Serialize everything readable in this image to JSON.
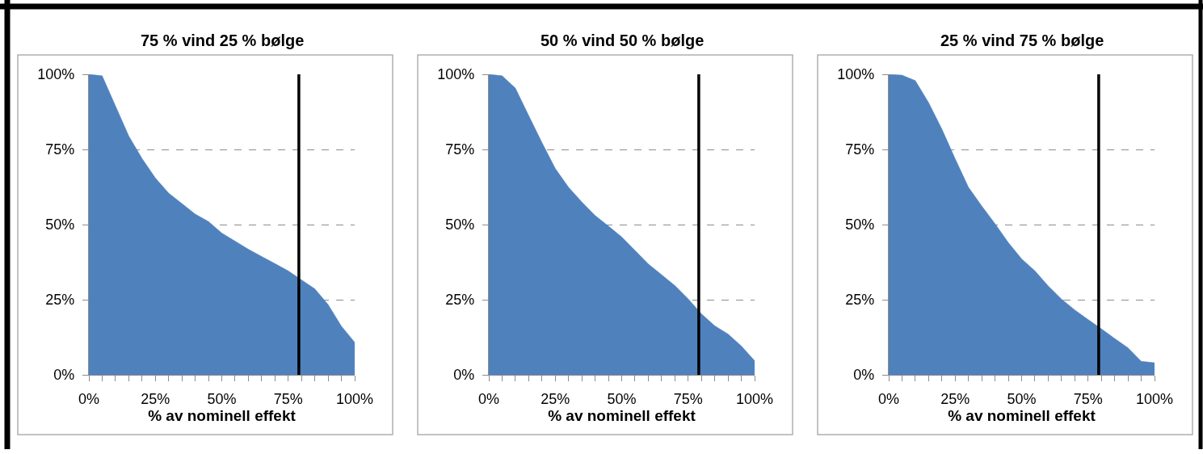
{
  "chart_data": [
    {
      "type": "area",
      "title": "75 % vind 25 % bølge",
      "xlabel": "% av nominell effekt",
      "color": "#4f81bd",
      "grid": "y",
      "x": [
        0,
        5,
        10,
        15,
        20,
        25,
        30,
        35,
        40,
        45,
        50,
        55,
        60,
        65,
        70,
        75,
        80,
        85,
        90,
        95,
        100
      ],
      "values": [
        100,
        99.5,
        89.5,
        79.5,
        72,
        65.5,
        60.5,
        57,
        53.5,
        51,
        47.2,
        44.5,
        41.8,
        39.4,
        37,
        34.6,
        31.6,
        28.6,
        23.4,
        16.2,
        10.8
      ],
      "xlim": [
        0,
        100
      ],
      "ylim": [
        0,
        100
      ],
      "xticks": [
        {
          "value": 0,
          "label": "0%"
        },
        {
          "value": 5,
          "label": null
        },
        {
          "value": 10,
          "label": null
        },
        {
          "value": 15,
          "label": null
        },
        {
          "value": 20,
          "label": null
        },
        {
          "value": 25,
          "label": "25%"
        },
        {
          "value": 30,
          "label": null
        },
        {
          "value": 35,
          "label": null
        },
        {
          "value": 40,
          "label": null
        },
        {
          "value": 45,
          "label": null
        },
        {
          "value": 50,
          "label": "50%"
        },
        {
          "value": 55,
          "label": null
        },
        {
          "value": 60,
          "label": null
        },
        {
          "value": 65,
          "label": null
        },
        {
          "value": 70,
          "label": null
        },
        {
          "value": 75,
          "label": "75%"
        },
        {
          "value": 80,
          "label": null
        },
        {
          "value": 85,
          "label": null
        },
        {
          "value": 90,
          "label": null
        },
        {
          "value": 95,
          "label": null
        },
        {
          "value": 100,
          "label": "100%"
        }
      ],
      "yticks": [
        {
          "value": 0,
          "label": "0%"
        },
        {
          "value": 25,
          "label": "25%"
        },
        {
          "value": 50,
          "label": "50%"
        },
        {
          "value": 75,
          "label": "75%"
        },
        {
          "value": 100,
          "label": "100%"
        }
      ],
      "ref_lines": [
        {
          "axis": "x",
          "value": 79,
          "color": "#000000"
        }
      ]
    },
    {
      "type": "area",
      "title": "50 % vind 50 % bølge",
      "xlabel": "% av nominell effekt",
      "color": "#4f81bd",
      "grid": "y",
      "x": [
        0,
        5,
        10,
        15,
        20,
        25,
        30,
        35,
        40,
        45,
        50,
        55,
        60,
        65,
        70,
        75,
        80,
        85,
        90,
        95,
        100
      ],
      "values": [
        100,
        99.5,
        95.4,
        86.3,
        77.3,
        68.7,
        62.4,
        57.5,
        53,
        49.5,
        45.9,
        41.4,
        36.9,
        33.3,
        29.7,
        25.3,
        20.3,
        16.3,
        13.6,
        9.6,
        4.7
      ],
      "xlim": [
        0,
        100
      ],
      "ylim": [
        0,
        100
      ],
      "xticks": [
        {
          "value": 0,
          "label": "0%"
        },
        {
          "value": 5,
          "label": null
        },
        {
          "value": 10,
          "label": null
        },
        {
          "value": 15,
          "label": null
        },
        {
          "value": 20,
          "label": null
        },
        {
          "value": 25,
          "label": "25%"
        },
        {
          "value": 30,
          "label": null
        },
        {
          "value": 35,
          "label": null
        },
        {
          "value": 40,
          "label": null
        },
        {
          "value": 45,
          "label": null
        },
        {
          "value": 50,
          "label": "50%"
        },
        {
          "value": 55,
          "label": null
        },
        {
          "value": 60,
          "label": null
        },
        {
          "value": 65,
          "label": null
        },
        {
          "value": 70,
          "label": null
        },
        {
          "value": 75,
          "label": "75%"
        },
        {
          "value": 80,
          "label": null
        },
        {
          "value": 85,
          "label": null
        },
        {
          "value": 90,
          "label": null
        },
        {
          "value": 95,
          "label": null
        },
        {
          "value": 100,
          "label": "100%"
        }
      ],
      "yticks": [
        {
          "value": 0,
          "label": "0%"
        },
        {
          "value": 25,
          "label": "25%"
        },
        {
          "value": 50,
          "label": "50%"
        },
        {
          "value": 75,
          "label": "75%"
        },
        {
          "value": 100,
          "label": "100%"
        }
      ],
      "ref_lines": [
        {
          "axis": "x",
          "value": 79,
          "color": "#000000"
        }
      ]
    },
    {
      "type": "area",
      "title": "25 % vind 75 % bølge",
      "xlabel": "% av nominell effekt",
      "color": "#4f81bd",
      "grid": "y",
      "x": [
        0,
        5,
        10,
        15,
        20,
        25,
        30,
        35,
        40,
        45,
        50,
        55,
        60,
        65,
        70,
        75,
        80,
        85,
        90,
        95,
        100
      ],
      "values": [
        100,
        99.7,
        97.9,
        90.6,
        81.8,
        71.9,
        62.4,
        56.2,
        50.3,
        44,
        38.6,
        34.6,
        29.6,
        25.2,
        21.6,
        18.4,
        15.3,
        12.1,
        9,
        4.5,
        4
      ],
      "xlim": [
        0,
        100
      ],
      "ylim": [
        0,
        100
      ],
      "xticks": [
        {
          "value": 0,
          "label": "0%"
        },
        {
          "value": 5,
          "label": null
        },
        {
          "value": 10,
          "label": null
        },
        {
          "value": 15,
          "label": null
        },
        {
          "value": 20,
          "label": null
        },
        {
          "value": 25,
          "label": "25%"
        },
        {
          "value": 30,
          "label": null
        },
        {
          "value": 35,
          "label": null
        },
        {
          "value": 40,
          "label": null
        },
        {
          "value": 45,
          "label": null
        },
        {
          "value": 50,
          "label": "50%"
        },
        {
          "value": 55,
          "label": null
        },
        {
          "value": 60,
          "label": null
        },
        {
          "value": 65,
          "label": null
        },
        {
          "value": 70,
          "label": null
        },
        {
          "value": 75,
          "label": "75%"
        },
        {
          "value": 80,
          "label": null
        },
        {
          "value": 85,
          "label": null
        },
        {
          "value": 90,
          "label": null
        },
        {
          "value": 95,
          "label": null
        },
        {
          "value": 100,
          "label": "100%"
        }
      ],
      "yticks": [
        {
          "value": 0,
          "label": "0%"
        },
        {
          "value": 25,
          "label": "25%"
        },
        {
          "value": 50,
          "label": "50%"
        },
        {
          "value": 75,
          "label": "75%"
        },
        {
          "value": 100,
          "label": "100%"
        }
      ],
      "ref_lines": [
        {
          "axis": "x",
          "value": 79,
          "color": "#000000"
        }
      ]
    }
  ]
}
